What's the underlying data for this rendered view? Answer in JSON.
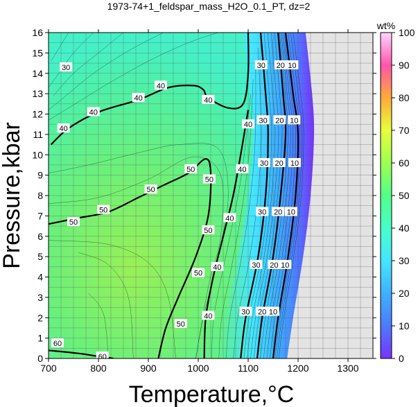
{
  "chart_data": {
    "type": "contour",
    "title": "1973-74+1_feldspar_mass_H2O_0.1_PT, dz=2",
    "xlabel": "Temperature,°C",
    "ylabel": "Pressure,kbar",
    "xlim": [
      700,
      1350
    ],
    "ylim": [
      0,
      16
    ],
    "x_ticks": [
      "700",
      "800",
      "900",
      "1000",
      "1100",
      "1200",
      "1300"
    ],
    "y_ticks": [
      "0",
      "1",
      "2",
      "3",
      "4",
      "5",
      "6",
      "7",
      "8",
      "9",
      "10",
      "11",
      "12",
      "13",
      "14",
      "15",
      "16"
    ],
    "grid": true,
    "colorbar": {
      "label": "wt%",
      "range": [
        0,
        100
      ],
      "ticks": [
        "0",
        "10",
        "20",
        "30",
        "40",
        "50",
        "60",
        "70",
        "80",
        "90",
        "100"
      ]
    },
    "bold_contours": [
      {
        "level": 10,
        "points": [
          [
            1175,
            16
          ],
          [
            1190,
            13
          ],
          [
            1200,
            11
          ],
          [
            1195,
            8
          ],
          [
            1180,
            5
          ],
          [
            1160,
            2
          ],
          [
            1150,
            0
          ]
        ]
      },
      {
        "level": 20,
        "points": [
          [
            1160,
            16
          ],
          [
            1170,
            13
          ],
          [
            1175,
            11
          ],
          [
            1165,
            8
          ],
          [
            1150,
            5
          ],
          [
            1128,
            2
          ],
          [
            1118,
            0
          ]
        ]
      },
      {
        "level": 30,
        "points": [
          [
            1125,
            16
          ],
          [
            1135,
            13
          ],
          [
            1140,
            11
          ],
          [
            1135,
            8
          ],
          [
            1120,
            5
          ],
          [
            1095,
            2
          ],
          [
            1085,
            0
          ]
        ]
      },
      {
        "level": 40,
        "points": [
          [
            1100,
            16
          ],
          [
            1100,
            14
          ],
          [
            1090,
            12.5
          ],
          [
            1060,
            12.3
          ],
          [
            1020,
            12.8
          ],
          [
            1010,
            13.2
          ],
          [
            990,
            13.4
          ],
          [
            940,
            13.3
          ],
          [
            880,
            12.7
          ],
          [
            800,
            12.1
          ],
          [
            740,
            11.3
          ],
          [
            705,
            10.5
          ]
        ]
      },
      {
        "level": 40,
        "points": [
          [
            1100,
            12.2
          ],
          [
            1085,
            10
          ],
          [
            1070,
            8
          ],
          [
            1050,
            6
          ],
          [
            1030,
            4
          ],
          [
            1015,
            2
          ],
          [
            1012,
            0
          ]
        ]
      },
      {
        "level": 50,
        "points": [
          [
            700,
            6.6
          ],
          [
            760,
            6.9
          ],
          [
            820,
            7.2
          ],
          [
            880,
            7.9
          ],
          [
            930,
            8.5
          ],
          [
            980,
            9.1
          ],
          [
            1015,
            9.8
          ],
          [
            1025,
            9.1
          ],
          [
            1020,
            7
          ],
          [
            995,
            5
          ],
          [
            960,
            3
          ],
          [
            935,
            1.5
          ],
          [
            920,
            0
          ]
        ]
      },
      {
        "level": 60,
        "points": [
          [
            700,
            0.4
          ],
          [
            760,
            0.25
          ],
          [
            800,
            0.1
          ],
          [
            830,
            0
          ]
        ]
      }
    ],
    "contour_labels": [
      {
        "text": "30",
        "x": 735,
        "y": 14.3
      },
      {
        "text": "40",
        "x": 730,
        "y": 11.3
      },
      {
        "text": "40",
        "x": 790,
        "y": 12.1
      },
      {
        "text": "40",
        "x": 880,
        "y": 12.8
      },
      {
        "text": "40",
        "x": 925,
        "y": 13.4
      },
      {
        "text": "40",
        "x": 1020,
        "y": 12.7
      },
      {
        "text": "40",
        "x": 1100,
        "y": 11.5
      },
      {
        "text": "40",
        "x": 1088,
        "y": 9.3
      },
      {
        "text": "40",
        "x": 1063,
        "y": 6.9
      },
      {
        "text": "40",
        "x": 1038,
        "y": 4.5
      },
      {
        "text": "40",
        "x": 1020,
        "y": 2.1
      },
      {
        "text": "50",
        "x": 750,
        "y": 6.7
      },
      {
        "text": "50",
        "x": 810,
        "y": 7.3
      },
      {
        "text": "50",
        "x": 905,
        "y": 8.3
      },
      {
        "text": "50",
        "x": 985,
        "y": 9.3
      },
      {
        "text": "50",
        "x": 1022,
        "y": 8.8
      },
      {
        "text": "50",
        "x": 1020,
        "y": 6.3
      },
      {
        "text": "50",
        "x": 1000,
        "y": 4.2
      },
      {
        "text": "50",
        "x": 965,
        "y": 1.7
      },
      {
        "text": "60",
        "x": 718,
        "y": 0.75
      },
      {
        "text": "60",
        "x": 808,
        "y": 0.1
      },
      {
        "text": "30",
        "x": 1126,
        "y": 14.4
      },
      {
        "text": "30",
        "x": 1130,
        "y": 11.7
      },
      {
        "text": "30",
        "x": 1132,
        "y": 9.6
      },
      {
        "text": "30",
        "x": 1128,
        "y": 7.2
      },
      {
        "text": "30",
        "x": 1116,
        "y": 4.6
      },
      {
        "text": "30",
        "x": 1095,
        "y": 2.3
      },
      {
        "text": "20",
        "x": 1165,
        "y": 14.4
      },
      {
        "text": "20",
        "x": 1163,
        "y": 11.7
      },
      {
        "text": "20",
        "x": 1162,
        "y": 9.6
      },
      {
        "text": "20",
        "x": 1160,
        "y": 7.2
      },
      {
        "text": "20",
        "x": 1152,
        "y": 4.6
      },
      {
        "text": "20",
        "x": 1128,
        "y": 2.3
      },
      {
        "text": "10",
        "x": 1188,
        "y": 14.4
      },
      {
        "text": "10",
        "x": 1192,
        "y": 11.7
      },
      {
        "text": "10",
        "x": 1193,
        "y": 9.6
      },
      {
        "text": "10",
        "x": 1186,
        "y": 7.2
      },
      {
        "text": "10",
        "x": 1174,
        "y": 4.6
      },
      {
        "text": "10",
        "x": 1150,
        "y": 2.3
      }
    ],
    "no_data_color": "#e3e3e3",
    "colors": {
      "c0": "#7a30ff",
      "c10": "#4d7aff",
      "c20": "#3eb1ff",
      "c30": "#45e6ff",
      "c40": "#47ffc9",
      "c50": "#52ff88",
      "c60": "#9dff52",
      "c70": "#e6ff3d",
      "c80": "#ffaa38",
      "c90": "#ff55aa",
      "c100": "#ffd5ff"
    }
  }
}
